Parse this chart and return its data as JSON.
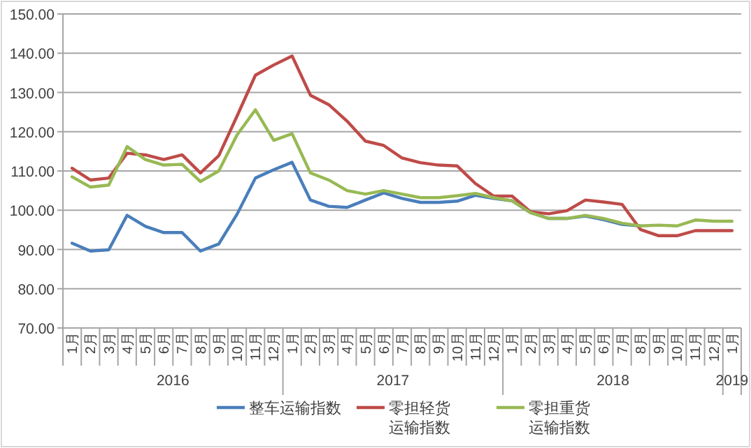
{
  "chart_data": {
    "type": "line",
    "categories": [
      "1月",
      "2月",
      "3月",
      "4月",
      "5月",
      "6月",
      "7月",
      "8月",
      "9月",
      "10月",
      "11月",
      "12月",
      "1月",
      "2月",
      "3月",
      "4月",
      "5月",
      "6月",
      "7月",
      "8月",
      "9月",
      "10月",
      "11月",
      "12月",
      "1月",
      "2月",
      "3月",
      "4月",
      "5月",
      "6月",
      "7月",
      "8月",
      "9月",
      "10月",
      "11月",
      "12月",
      "1月"
    ],
    "series": [
      {
        "name": "整车运输指数",
        "color": "#4a7ebb",
        "values": [
          91.6,
          89.6,
          89.9,
          98.7,
          95.9,
          94.3,
          94.3,
          89.6,
          91.4,
          99.0,
          108.2,
          110.3,
          112.2,
          102.6,
          101.0,
          100.7,
          102.6,
          104.4,
          103.0,
          102.0,
          102.0,
          102.3,
          103.8,
          103.0,
          102.4,
          99.4,
          97.9,
          97.9,
          98.5,
          97.6,
          96.4,
          96.0,
          null,
          null,
          null,
          null,
          null
        ]
      },
      {
        "name": "零担轻货运输指数",
        "color": "#be4b48",
        "values": [
          110.7,
          107.7,
          108.2,
          114.5,
          114.1,
          112.9,
          114.1,
          109.5,
          113.9,
          124.0,
          134.4,
          137.0,
          139.3,
          129.3,
          126.9,
          122.7,
          117.6,
          116.5,
          113.3,
          112.1,
          111.5,
          111.3,
          106.8,
          103.6,
          103.6,
          99.6,
          99.1,
          99.9,
          102.6,
          102.1,
          101.5,
          95.1,
          93.5,
          93.5,
          94.8,
          94.8,
          94.8
        ]
      },
      {
        "name": "零担重货运输指数",
        "color": "#98b954",
        "values": [
          108.5,
          105.9,
          106.4,
          116.2,
          112.9,
          111.5,
          111.7,
          107.3,
          110.0,
          119.2,
          125.6,
          117.8,
          119.5,
          109.5,
          107.7,
          105.0,
          104.1,
          105.0,
          104.1,
          103.2,
          103.2,
          103.7,
          104.3,
          103.2,
          102.4,
          99.4,
          97.9,
          97.9,
          98.7,
          97.9,
          96.7,
          96.0,
          96.2,
          96.0,
          97.5,
          97.2,
          97.2
        ]
      }
    ],
    "ylim": [
      70,
      150
    ],
    "yticks": [
      {
        "value": 70,
        "label": "70.00"
      },
      {
        "value": 80,
        "label": "80.00"
      },
      {
        "value": 90,
        "label": "90.00"
      },
      {
        "value": 100,
        "label": "100.00"
      },
      {
        "value": 110,
        "label": "110.00"
      },
      {
        "value": 120,
        "label": "120.00"
      },
      {
        "value": 130,
        "label": "130.00"
      },
      {
        "value": 140,
        "label": "140.00"
      },
      {
        "value": 150,
        "label": "150.00"
      }
    ],
    "annotations": [
      "2016",
      "2017",
      "2018",
      "2019"
    ],
    "grid": "y",
    "legend": "bottom",
    "marker": "none",
    "line_style": "solid"
  }
}
